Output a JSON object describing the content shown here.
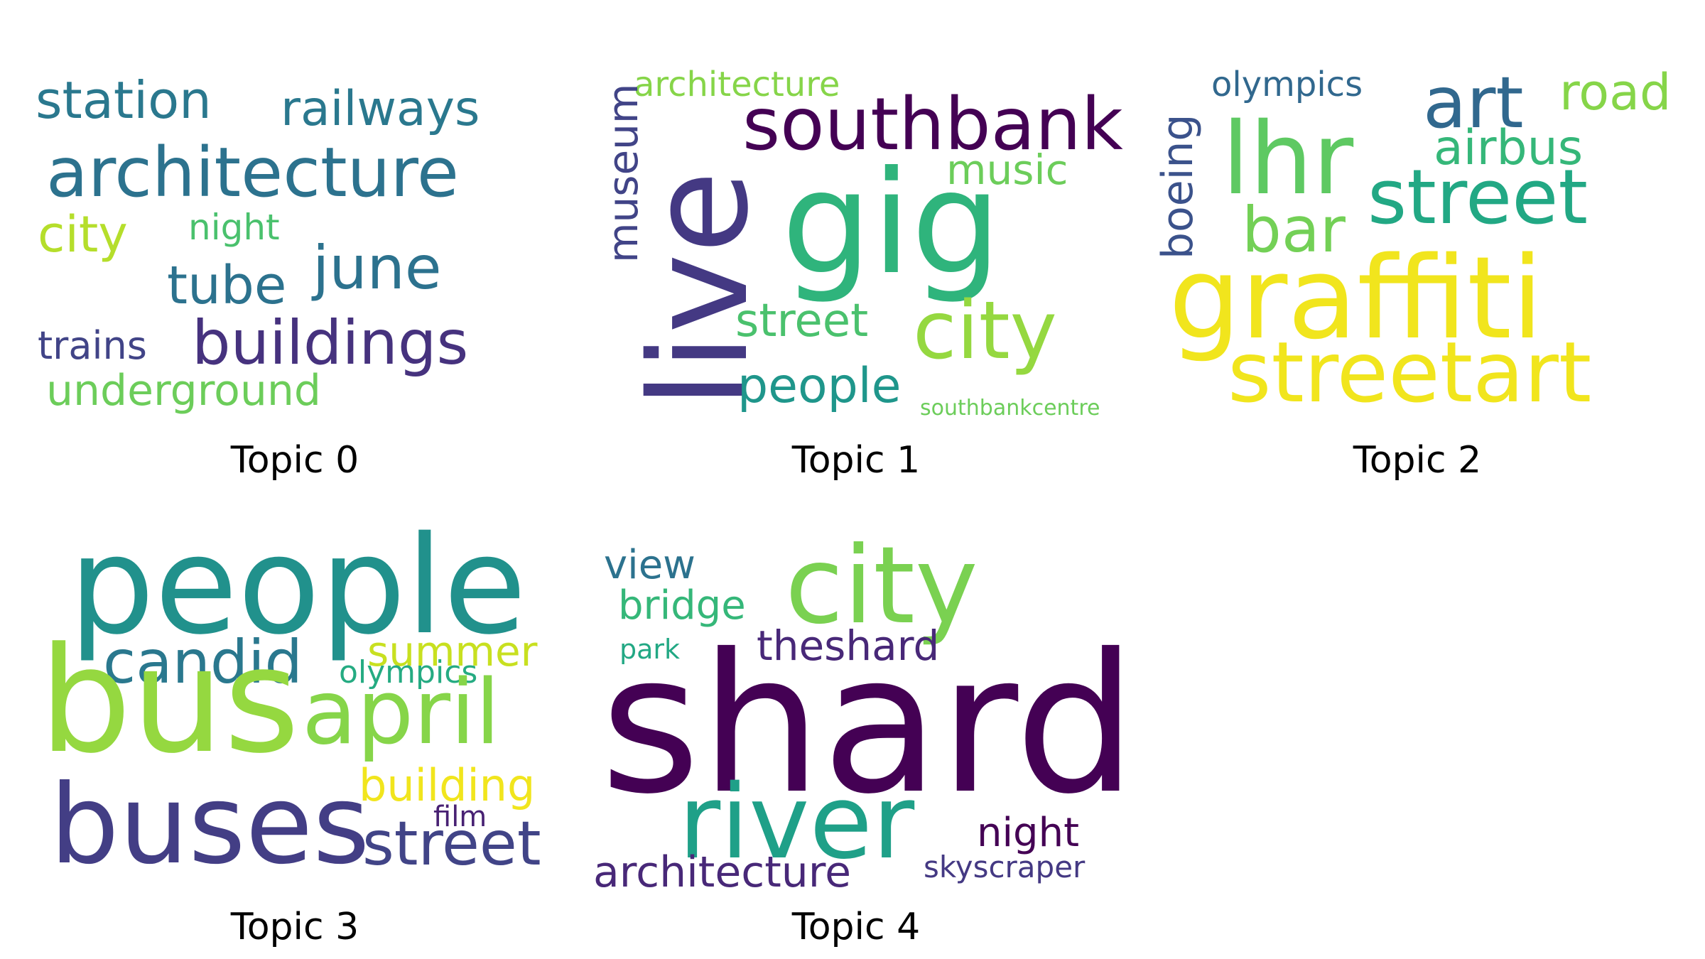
{
  "panels": [
    {
      "caption": "Topic 0",
      "words": [
        {
          "text": "station",
          "color": "#2a788e"
        },
        {
          "text": "railways",
          "color": "#2a788e"
        },
        {
          "text": "architecture",
          "color": "#2c728e"
        },
        {
          "text": "city",
          "color": "#b5de2b"
        },
        {
          "text": "night",
          "color": "#4ac16d"
        },
        {
          "text": "june",
          "color": "#2c728e"
        },
        {
          "text": "tube",
          "color": "#2c728e"
        },
        {
          "text": "trains",
          "color": "#414487"
        },
        {
          "text": "buildings",
          "color": "#46327e"
        },
        {
          "text": "underground",
          "color": "#6ccd5a"
        }
      ]
    },
    {
      "caption": "Topic 1",
      "words": [
        {
          "text": "architecture",
          "color": "#86d549"
        },
        {
          "text": "museum",
          "color": "#414487"
        },
        {
          "text": "live",
          "color": "#443983"
        },
        {
          "text": "southbank",
          "color": "#440154"
        },
        {
          "text": "music",
          "color": "#6ccd5a"
        },
        {
          "text": "gig",
          "color": "#2fb47c"
        },
        {
          "text": "street",
          "color": "#4ac16d"
        },
        {
          "text": "city",
          "color": "#95d840"
        },
        {
          "text": "people",
          "color": "#1f968b"
        },
        {
          "text": "southbankcentre",
          "color": "#6ccd5a"
        }
      ]
    },
    {
      "caption": "Topic 2",
      "words": [
        {
          "text": "olympics",
          "color": "#31688e"
        },
        {
          "text": "boeing",
          "color": "#3b528b"
        },
        {
          "text": "art",
          "color": "#31688e"
        },
        {
          "text": "road",
          "color": "#86d549"
        },
        {
          "text": "lhr",
          "color": "#5ec962"
        },
        {
          "text": "airbus",
          "color": "#35b779"
        },
        {
          "text": "street",
          "color": "#22a884"
        },
        {
          "text": "bar",
          "color": "#73d056"
        },
        {
          "text": "graffiti",
          "color": "#f1e51d"
        },
        {
          "text": "streetart",
          "color": "#f1e51d"
        }
      ]
    },
    {
      "caption": "Topic 3",
      "words": [
        {
          "text": "people",
          "color": "#21918c"
        },
        {
          "text": "candid",
          "color": "#2a788e"
        },
        {
          "text": "summer",
          "color": "#c8e020"
        },
        {
          "text": "olympics",
          "color": "#25ab82"
        },
        {
          "text": "bus",
          "color": "#95d840"
        },
        {
          "text": "april",
          "color": "#86d549"
        },
        {
          "text": "building",
          "color": "#f1e51d"
        },
        {
          "text": "film",
          "color": "#482173"
        },
        {
          "text": "buses",
          "color": "#433e85"
        },
        {
          "text": "street",
          "color": "#414487"
        }
      ]
    },
    {
      "caption": "Topic 4",
      "words": [
        {
          "text": "view",
          "color": "#2c728e"
        },
        {
          "text": "city",
          "color": "#7ad151"
        },
        {
          "text": "bridge",
          "color": "#35b779"
        },
        {
          "text": "park",
          "color": "#22a884"
        },
        {
          "text": "theshard",
          "color": "#482878"
        },
        {
          "text": "shard",
          "color": "#440154"
        },
        {
          "text": "river",
          "color": "#1fa088"
        },
        {
          "text": "night",
          "color": "#440154"
        },
        {
          "text": "architecture",
          "color": "#482878"
        },
        {
          "text": "skyscraper",
          "color": "#443983"
        }
      ]
    }
  ]
}
